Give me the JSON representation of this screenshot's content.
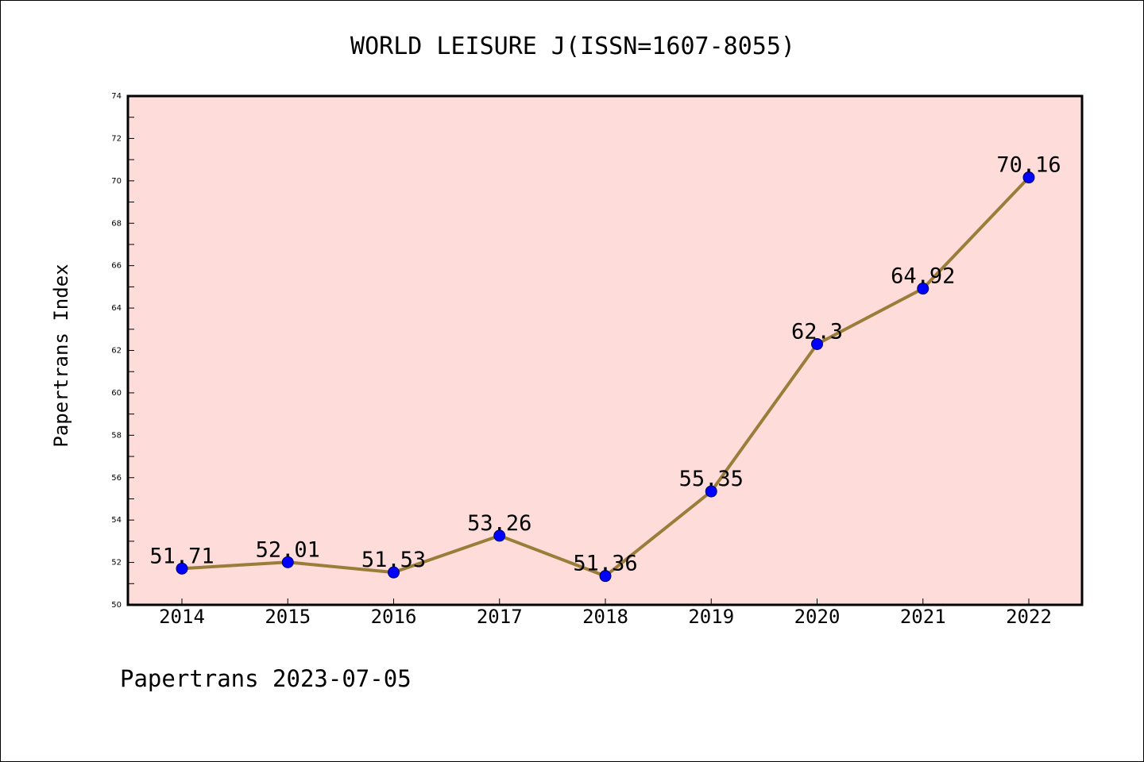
{
  "chart_data": {
    "type": "line",
    "title": "WORLD LEISURE J(ISSN=1607-8055)",
    "xlabel": "",
    "ylabel": "Papertrans Index",
    "categories": [
      "2014",
      "2015",
      "2016",
      "2017",
      "2018",
      "2019",
      "2020",
      "2021",
      "2022"
    ],
    "series": [
      {
        "values": [
          51.71,
          52.01,
          51.53,
          53.26,
          51.36,
          55.35,
          62.3,
          64.92,
          70.16
        ],
        "labels": [
          "51.71",
          "52.01",
          "51.53",
          "53.26",
          "51.36",
          "55.35",
          "62.3",
          "64.92",
          "70.16"
        ]
      }
    ],
    "ylim": [
      50,
      74
    ],
    "y_ticks": [
      50,
      52,
      54,
      56,
      58,
      60,
      62,
      64,
      66,
      68,
      70,
      72,
      74
    ],
    "grid": false,
    "legend": "none"
  },
  "footer": {
    "text": "Papertrans 2023-07-05"
  },
  "colors": {
    "plot_background": "#fddcd9",
    "line": "#9b7d3a",
    "marker_fill": "#0000ff",
    "marker_edge": "#000066",
    "axes": "#000000",
    "text": "#000000"
  }
}
